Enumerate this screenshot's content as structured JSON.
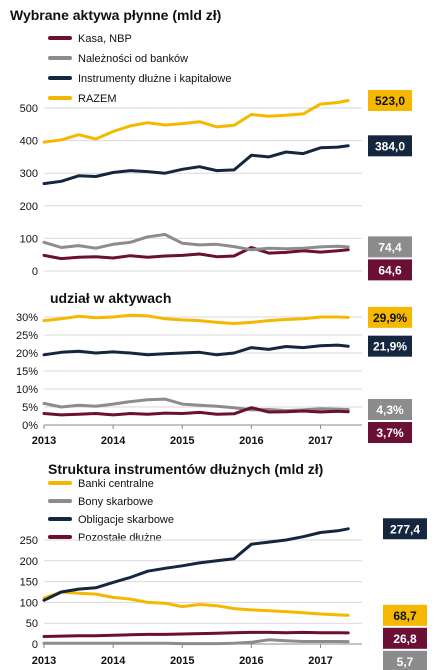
{
  "colors": {
    "kasa": "#6b0f34",
    "banki": "#8c8c8c",
    "instrumenty": "#14273e",
    "razem": "#f5b800"
  },
  "chart_data": [
    {
      "type": "line",
      "title": "Wybrane aktywa płynne (mld zł)",
      "xlabel": "",
      "ylabel": "",
      "ylim": [
        0,
        560
      ],
      "yticks": [
        "0",
        "100",
        "200",
        "300",
        "400",
        "500"
      ],
      "xlim": [
        2013,
        2017.6
      ],
      "xticks": [
        "2013",
        "2014",
        "2015",
        "2016",
        "2017"
      ],
      "legend_position": "top-left",
      "grid": true,
      "series": [
        {
          "name": "Kasa, NBP",
          "color_key": "kasa",
          "end_label": "64,6",
          "x": [
            2013.0,
            2013.25,
            2013.5,
            2013.75,
            2014.0,
            2014.25,
            2014.5,
            2014.75,
            2015.0,
            2015.25,
            2015.5,
            2015.75,
            2016.0,
            2016.25,
            2016.5,
            2016.75,
            2017.0,
            2017.25,
            2017.4
          ],
          "y": [
            48,
            38,
            42,
            44,
            40,
            47,
            42,
            46,
            48,
            52,
            44,
            46,
            72,
            55,
            57,
            62,
            58,
            62,
            65
          ]
        },
        {
          "name": "Należności od banków",
          "color_key": "banki",
          "end_label": "74,4",
          "x": [
            2013.0,
            2013.25,
            2013.5,
            2013.75,
            2014.0,
            2014.25,
            2014.5,
            2014.75,
            2015.0,
            2015.25,
            2015.5,
            2015.75,
            2016.0,
            2016.25,
            2016.5,
            2016.75,
            2017.0,
            2017.25,
            2017.4
          ],
          "y": [
            88,
            72,
            78,
            70,
            82,
            88,
            105,
            112,
            85,
            80,
            82,
            75,
            65,
            70,
            68,
            70,
            74,
            76,
            74
          ]
        },
        {
          "name": "Instrumenty dłużne i kapitałowe",
          "color_key": "instrumenty",
          "end_label": "384,0",
          "x": [
            2013.0,
            2013.25,
            2013.5,
            2013.75,
            2014.0,
            2014.25,
            2014.5,
            2014.75,
            2015.0,
            2015.25,
            2015.5,
            2015.75,
            2016.0,
            2016.25,
            2016.5,
            2016.75,
            2017.0,
            2017.25,
            2017.4
          ],
          "y": [
            268,
            275,
            292,
            290,
            302,
            308,
            305,
            300,
            312,
            320,
            308,
            310,
            355,
            350,
            365,
            360,
            378,
            380,
            384
          ]
        },
        {
          "name": "RAZEM",
          "color_key": "razem",
          "end_label": "523,0",
          "x": [
            2013.0,
            2013.25,
            2013.5,
            2013.75,
            2014.0,
            2014.25,
            2014.5,
            2014.75,
            2015.0,
            2015.25,
            2015.5,
            2015.75,
            2016.0,
            2016.25,
            2016.5,
            2016.75,
            2017.0,
            2017.25,
            2017.4
          ],
          "y": [
            395,
            402,
            418,
            405,
            428,
            445,
            455,
            448,
            452,
            458,
            442,
            447,
            480,
            475,
            478,
            482,
            512,
            517,
            523
          ]
        }
      ]
    },
    {
      "type": "line",
      "title": "udział w aktywach",
      "xlabel": "",
      "ylabel": "",
      "ylim": [
        0,
        32
      ],
      "yticks": [
        "0%",
        "5%",
        "10%",
        "15%",
        "20%",
        "25%",
        "30%"
      ],
      "xlim": [
        2013,
        2017.6
      ],
      "xticks": [
        "2013",
        "2014",
        "2015",
        "2016",
        "2017"
      ],
      "grid": true,
      "series": [
        {
          "color_key": "razem",
          "end_label": "29,9%",
          "x": [
            2013.0,
            2013.25,
            2013.5,
            2013.75,
            2014.0,
            2014.25,
            2014.5,
            2014.75,
            2015.0,
            2015.25,
            2015.5,
            2015.75,
            2016.0,
            2016.25,
            2016.5,
            2016.75,
            2017.0,
            2017.25,
            2017.4
          ],
          "y": [
            29.0,
            29.5,
            30.2,
            29.8,
            30.0,
            30.5,
            30.3,
            29.5,
            29.2,
            29.0,
            28.5,
            28.2,
            28.5,
            29.0,
            29.3,
            29.5,
            30.0,
            30.0,
            29.9
          ]
        },
        {
          "color_key": "instrumenty",
          "end_label": "21,9%",
          "x": [
            2013.0,
            2013.25,
            2013.5,
            2013.75,
            2014.0,
            2014.25,
            2014.5,
            2014.75,
            2015.0,
            2015.25,
            2015.5,
            2015.75,
            2016.0,
            2016.25,
            2016.5,
            2016.75,
            2017.0,
            2017.25,
            2017.4
          ],
          "y": [
            19.5,
            20.2,
            20.5,
            20.0,
            20.3,
            20.0,
            19.5,
            19.8,
            20.0,
            20.2,
            19.5,
            20.0,
            21.5,
            21.0,
            21.8,
            21.5,
            22.0,
            22.2,
            21.9
          ]
        },
        {
          "color_key": "banki",
          "end_label": "4,3%",
          "x": [
            2013.0,
            2013.25,
            2013.5,
            2013.75,
            2014.0,
            2014.25,
            2014.5,
            2014.75,
            2015.0,
            2015.25,
            2015.5,
            2015.75,
            2016.0,
            2016.25,
            2016.5,
            2016.75,
            2017.0,
            2017.25,
            2017.4
          ],
          "y": [
            6.0,
            5.0,
            5.5,
            5.2,
            5.8,
            6.5,
            7.0,
            7.2,
            5.8,
            5.5,
            5.2,
            4.8,
            4.2,
            4.3,
            4.0,
            4.2,
            4.5,
            4.4,
            4.3
          ]
        },
        {
          "color_key": "kasa",
          "end_label": "3,7%",
          "x": [
            2013.0,
            2013.25,
            2013.5,
            2013.75,
            2014.0,
            2014.25,
            2014.5,
            2014.75,
            2015.0,
            2015.25,
            2015.5,
            2015.75,
            2016.0,
            2016.25,
            2016.5,
            2016.75,
            2017.0,
            2017.25,
            2017.4
          ],
          "y": [
            3.2,
            2.8,
            3.0,
            3.2,
            2.8,
            3.2,
            3.0,
            3.3,
            3.2,
            3.5,
            3.0,
            3.1,
            4.8,
            3.6,
            3.7,
            3.9,
            3.6,
            3.8,
            3.7
          ]
        }
      ]
    },
    {
      "type": "line",
      "title": "Struktura instrumentów dłużnych (mld zł)",
      "xlabel": "",
      "ylabel": "",
      "ylim": [
        0,
        290
      ],
      "yticks": [
        "0",
        "50",
        "100",
        "150",
        "200",
        "250"
      ],
      "xlim": [
        2013,
        2017.6
      ],
      "xticks": [
        "2013",
        "2014",
        "2015",
        "2016",
        "2017"
      ],
      "legend_position": "top-left",
      "grid": true,
      "series": [
        {
          "name": "Banki centralne",
          "color_key": "razem",
          "end_label": "68,7",
          "x": [
            2013.0,
            2013.25,
            2013.5,
            2013.75,
            2014.0,
            2014.25,
            2014.5,
            2014.75,
            2015.0,
            2015.25,
            2015.5,
            2015.75,
            2016.0,
            2016.25,
            2016.5,
            2016.75,
            2017.0,
            2017.25,
            2017.4
          ],
          "y": [
            110,
            125,
            122,
            120,
            112,
            108,
            100,
            98,
            90,
            95,
            92,
            85,
            82,
            80,
            78,
            75,
            72,
            70,
            69
          ]
        },
        {
          "name": "Bony skarbowe",
          "color_key": "banki",
          "end_label": "5,7",
          "x": [
            2013.0,
            2013.25,
            2013.5,
            2013.75,
            2014.0,
            2014.25,
            2014.5,
            2014.75,
            2015.0,
            2015.25,
            2015.5,
            2015.75,
            2016.0,
            2016.25,
            2016.5,
            2016.75,
            2017.0,
            2017.25,
            2017.4
          ],
          "y": [
            2,
            2,
            2,
            2,
            2,
            2,
            2,
            2,
            1,
            1,
            1,
            2,
            4,
            10,
            8,
            6,
            6,
            6,
            5.7
          ]
        },
        {
          "name": "Obligacje skarbowe",
          "color_key": "instrumenty",
          "end_label": "277,4",
          "x": [
            2013.0,
            2013.25,
            2013.5,
            2013.75,
            2014.0,
            2014.25,
            2014.5,
            2014.75,
            2015.0,
            2015.25,
            2015.5,
            2015.75,
            2016.0,
            2016.25,
            2016.5,
            2016.75,
            2017.0,
            2017.25,
            2017.4
          ],
          "y": [
            105,
            125,
            132,
            135,
            148,
            160,
            175,
            182,
            188,
            195,
            200,
            205,
            240,
            245,
            250,
            258,
            268,
            272,
            277
          ]
        },
        {
          "name": "Pozostałe dłużne",
          "color_key": "kasa",
          "end_label": "26,8",
          "x": [
            2013.0,
            2013.25,
            2013.5,
            2013.75,
            2014.0,
            2014.25,
            2014.5,
            2014.75,
            2015.0,
            2015.25,
            2015.5,
            2015.75,
            2016.0,
            2016.25,
            2016.5,
            2016.75,
            2017.0,
            2017.25,
            2017.4
          ],
          "y": [
            18,
            19,
            20,
            20,
            21,
            22,
            23,
            23,
            24,
            25,
            26,
            27,
            28,
            28,
            27,
            28,
            27,
            27,
            26.8
          ]
        }
      ]
    }
  ]
}
